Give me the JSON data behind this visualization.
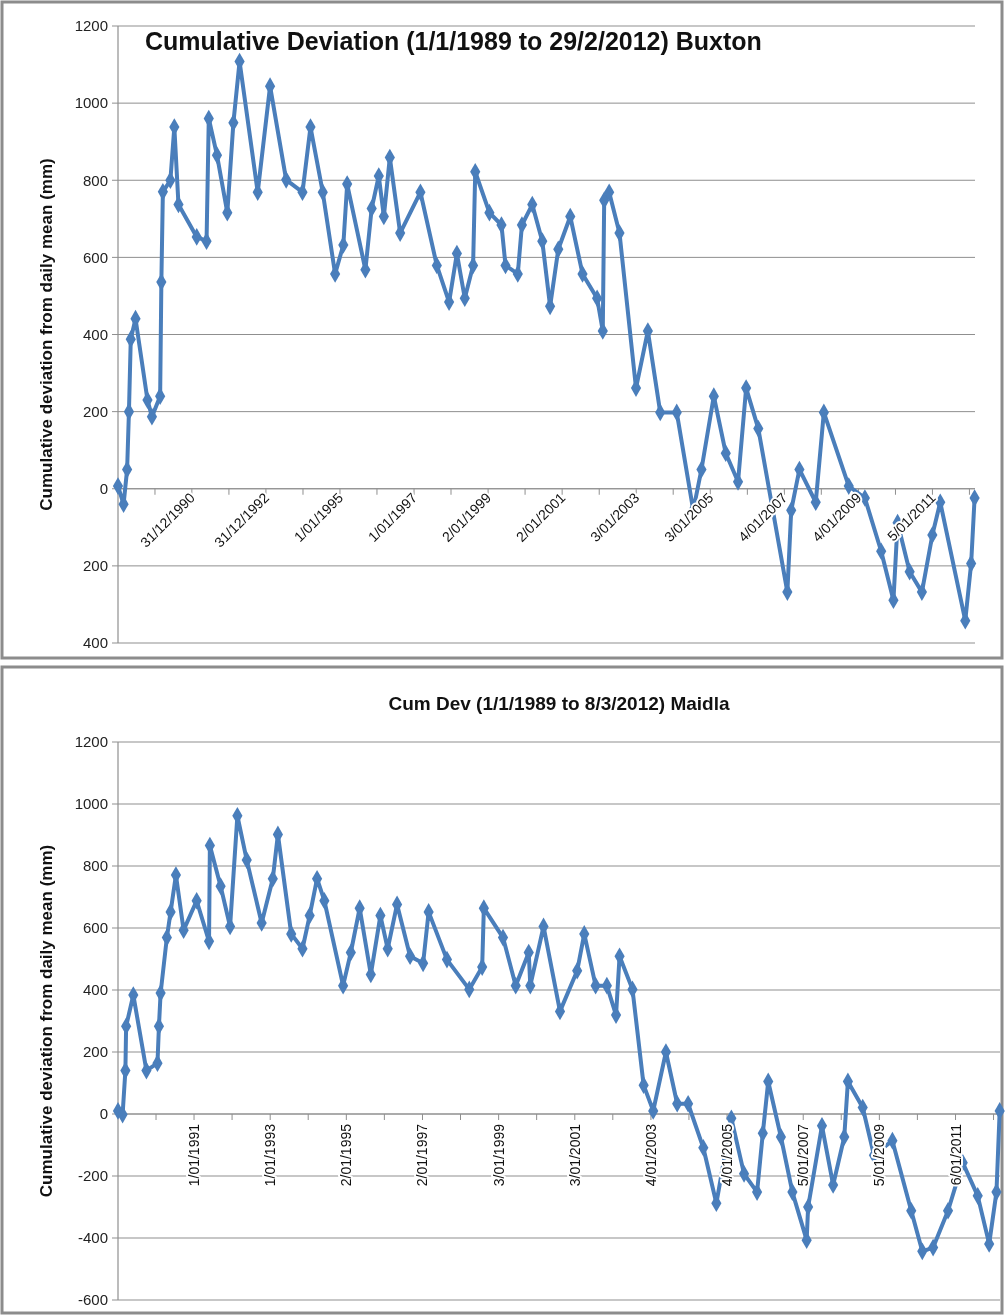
{
  "chart_data": [
    {
      "type": "line",
      "title": "Cumulative Deviation (1/1/1989 to 29/2/2012) Buxton",
      "ylabel": "Cumulative deviation from daily mean (mm)",
      "color": "#4a7ebb",
      "marker": "diamond",
      "grid": "y",
      "x": [
        "1989-01-01",
        "1989-02-25",
        "1989-04-01",
        "1989-04-19",
        "1989-05-07",
        "1989-06-23",
        "1989-10-19",
        "1989-12-02",
        "1990-02-21",
        "1990-03-05",
        "1990-03-20",
        "1990-06-02",
        "1990-07-11",
        "1990-08-21",
        "1991-02-17",
        "1991-05-25",
        "1991-06-16",
        "1991-09-05",
        "1991-12-16",
        "1992-02-14",
        "1992-04-15",
        "1992-10-11",
        "1993-02-10",
        "1993-07-19",
        "1993-12-27",
        "1994-03-16",
        "1994-07-15",
        "1994-11-14",
        "1995-02-03",
        "1995-03-13",
        "1995-09-09",
        "1995-11-10",
        "1996-01-19",
        "1996-03-09",
        "1996-05-07",
        "1996-08-17",
        "1997-03-05",
        "1997-08-14",
        "1997-12-13",
        "1998-02-28",
        "1998-05-17",
        "1998-08-07",
        "1998-08-28",
        "1999-01-15",
        "1999-05-14",
        "1999-06-23",
        "1999-10-22",
        "1999-12-02",
        "2000-03-13",
        "2000-06-20",
        "2000-09-05",
        "2000-11-25",
        "2001-03-23",
        "2001-07-22",
        "2001-12-13",
        "2002-02-07",
        "2002-02-21",
        "2002-04-11",
        "2002-07-22",
        "2003-01-01",
        "2003-04-28",
        "2003-08-28",
        "2004-02-07",
        "2004-07-19",
        "2004-10-08",
        "2005-02-07",
        "2005-06-05",
        "2005-10-04",
        "2005-12-23",
        "2006-04-22",
        "2007-02-03",
        "2007-03-13",
        "2007-06-02",
        "2007-11-10",
        "2008-01-29",
        "2008-10-01",
        "2009-03-09",
        "2009-08-17",
        "2009-12-16",
        "2010-01-26",
        "2010-05-25",
        "2010-09-23",
        "2011-01-04",
        "2011-03-23",
        "2011-11-25",
        "2012-01-22",
        "2012-02-25"
      ],
      "values": [
        7,
        -40,
        50,
        200,
        388,
        441,
        230,
        187,
        240,
        536,
        770,
        800,
        938,
        737,
        653,
        642,
        960,
        865,
        716,
        949,
        1108,
        769,
        1044,
        801,
        769,
        938,
        769,
        557,
        632,
        790,
        568,
        727,
        811,
        706,
        859,
        663,
        769,
        579,
        484,
        610,
        494,
        579,
        822,
        716,
        684,
        579,
        557,
        684,
        737,
        642,
        473,
        621,
        706,
        557,
        494,
        409,
        748,
        769,
        663,
        261,
        409,
        198,
        198,
        -56,
        50,
        240,
        92,
        18,
        261,
        156,
        -268,
        -56,
        50,
        -35,
        198,
        7,
        -24,
        -162,
        -289,
        -88,
        -215,
        -268,
        -120,
        -35,
        -342,
        -194,
        -24
      ],
      "xlim": [
        "1989-01-01",
        "2012-02-29"
      ],
      "xticks": [
        {
          "value": "1990-01-01",
          "label": null
        },
        {
          "value": "1990-12-31",
          "label": "31/12/1990"
        },
        {
          "value": "1992-01-01",
          "label": null
        },
        {
          "value": "1992-12-31",
          "label": "31/12/1992"
        },
        {
          "value": "1994-01-01",
          "label": null
        },
        {
          "value": "1995-01-01",
          "label": "1/01/1995"
        },
        {
          "value": "1996-01-01",
          "label": null
        },
        {
          "value": "1997-01-01",
          "label": "1/01/1997"
        },
        {
          "value": "1998-01-01",
          "label": null
        },
        {
          "value": "1999-01-02",
          "label": "2/01/1999"
        },
        {
          "value": "2000-01-02",
          "label": null
        },
        {
          "value": "2001-01-02",
          "label": "2/01/2001"
        },
        {
          "value": "2002-01-03",
          "label": null
        },
        {
          "value": "2003-01-03",
          "label": "3/01/2003"
        },
        {
          "value": "2004-01-03",
          "label": null
        },
        {
          "value": "2005-01-03",
          "label": "3/01/2005"
        },
        {
          "value": "2006-01-04",
          "label": null
        },
        {
          "value": "2007-01-04",
          "label": "4/01/2007"
        },
        {
          "value": "2008-01-04",
          "label": null
        },
        {
          "value": "2009-01-04",
          "label": "4/01/2009"
        },
        {
          "value": "2010-01-05",
          "label": null
        },
        {
          "value": "2011-01-05",
          "label": "5/01/2011"
        },
        {
          "value": "2012-01-05",
          "label": null
        }
      ],
      "ylim": [
        -400,
        1200
      ],
      "yticks": [
        {
          "value": -400,
          "label": "400"
        },
        {
          "value": -200,
          "label": "200"
        },
        0,
        200,
        400,
        600,
        800,
        1000,
        1200
      ]
    },
    {
      "type": "line",
      "title": "Cum Dev (1/1/1989 to 8/3/2012) Maidla",
      "ylabel": "Cumulative deviation from daily mean (mm)",
      "color": "#4a7ebb",
      "marker": "diamond",
      "grid": "y",
      "x": [
        "1989-01-01",
        "1989-02-14",
        "1989-03-13",
        "1989-03-20",
        "1989-05-28",
        "1989-10-01",
        "1990-01-15",
        "1990-01-29",
        "1990-02-14",
        "1990-04-15",
        "1990-05-21",
        "1990-07-11",
        "1990-09-23",
        "1991-01-26",
        "1991-05-25",
        "1991-06-02",
        "1991-09-13",
        "1991-12-13",
        "1992-02-21",
        "1992-05-21",
        "1992-10-11",
        "1993-01-26",
        "1993-03-16",
        "1993-07-22",
        "1993-11-07",
        "1994-01-15",
        "1994-03-27",
        "1994-06-05",
        "1994-12-02",
        "1995-02-14",
        "1995-05-10",
        "1995-08-25",
        "1995-11-25",
        "1996-02-03",
        "1996-05-03",
        "1996-09-05",
        "1997-01-08",
        "1997-03-02",
        "1997-08-25",
        "1998-03-27",
        "1998-07-29",
        "1998-08-14",
        "1999-02-14",
        "1999-06-16",
        "1999-10-19",
        "1999-11-03",
        "2000-03-09",
        "2000-08-14",
        "2001-01-26",
        "2001-04-04",
        "2001-07-22",
        "2001-11-07",
        "2002-02-03",
        "2002-03-09",
        "2002-07-11",
        "2002-10-26",
        "2003-01-26",
        "2003-05-28",
        "2003-09-13",
        "2003-12-27",
        "2004-05-21",
        "2004-09-23",
        "2005-02-14",
        "2005-06-16",
        "2005-10-19",
        "2005-12-13",
        "2006-02-03",
        "2006-06-05",
        "2006-09-23",
        "2007-02-07",
        "2007-02-21",
        "2007-07-04",
        "2007-10-19",
        "2008-02-03",
        "2008-03-09",
        "2008-07-29",
        "2008-11-14",
        "2009-05-10",
        "2009-11-07",
        "2010-02-21",
        "2010-06-05",
        "2010-10-26",
        "2011-03-16",
        "2011-08-07",
        "2011-11-25",
        "2012-02-03",
        "2012-03-05"
      ],
      "values": [
        10,
        -2,
        140,
        283,
        384,
        140,
        164,
        283,
        390,
        569,
        652,
        771,
        593,
        688,
        557,
        866,
        735,
        605,
        962,
        819,
        616,
        759,
        902,
        581,
        533,
        640,
        759,
        688,
        414,
        521,
        664,
        450,
        640,
        533,
        676,
        509,
        486,
        652,
        498,
        402,
        474,
        664,
        569,
        414,
        521,
        414,
        605,
        331,
        462,
        581,
        414,
        414,
        319,
        509,
        402,
        93,
        10,
        200,
        33,
        33,
        -109,
        -288,
        -14,
        -193,
        -252,
        -62,
        105,
        -74,
        -252,
        -407,
        -300,
        -38,
        -229,
        -74,
        105,
        21,
        -133,
        -86,
        -312,
        -443,
        -431,
        -312,
        -157,
        -264,
        -419,
        -252,
        10
      ],
      "xlim": [
        "1989-01-01",
        "2012-03-08"
      ],
      "xticks": [
        {
          "value": "1990-01-01",
          "label": null
        },
        {
          "value": "1991-01-01",
          "label": "1/01/1991"
        },
        {
          "value": "1992-01-01",
          "label": null
        },
        {
          "value": "1993-01-01",
          "label": "1/01/1993"
        },
        {
          "value": "1994-01-01",
          "label": null
        },
        {
          "value": "1995-01-02",
          "label": "2/01/1995"
        },
        {
          "value": "1996-01-02",
          "label": null
        },
        {
          "value": "1997-01-02",
          "label": "2/01/1997"
        },
        {
          "value": "1998-01-02",
          "label": null
        },
        {
          "value": "1999-01-03",
          "label": "3/01/1999"
        },
        {
          "value": "2000-01-03",
          "label": null
        },
        {
          "value": "2001-01-03",
          "label": "3/01/2001"
        },
        {
          "value": "2002-01-03",
          "label": null
        },
        {
          "value": "2003-01-04",
          "label": "4/01/2003"
        },
        {
          "value": "2004-01-04",
          "label": null
        },
        {
          "value": "2005-01-04",
          "label": "4/01/2005"
        },
        {
          "value": "2006-01-04",
          "label": null
        },
        {
          "value": "2007-01-05",
          "label": "5/01/2007"
        },
        {
          "value": "2008-01-05",
          "label": null
        },
        {
          "value": "2009-01-05",
          "label": "5/01/2009"
        },
        {
          "value": "2010-01-05",
          "label": null
        },
        {
          "value": "2011-01-06",
          "label": "6/01/2011"
        },
        {
          "value": "2012-01-06",
          "label": null
        }
      ],
      "ylim": [
        -600,
        1200
      ],
      "yticks": [
        -600,
        -400,
        -200,
        0,
        200,
        400,
        600,
        800,
        1000,
        1200
      ]
    }
  ]
}
